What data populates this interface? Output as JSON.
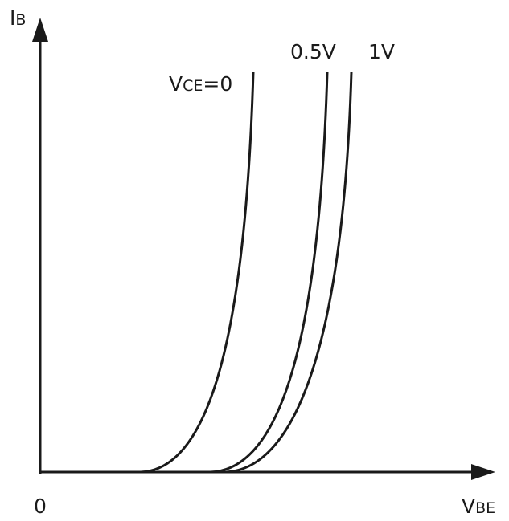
{
  "axes": {
    "y_label_main": "I",
    "y_label_sub": "B",
    "x_label_main": "V",
    "x_label_sub": "BE",
    "origin": "0"
  },
  "curves": [
    {
      "label_main": "V",
      "label_sub": "CE",
      "label_rest": "=0"
    },
    {
      "label_main": "0.5V"
    },
    {
      "label_main": "1V"
    }
  ],
  "colors": {
    "line": "#1a1a1a",
    "background": "#ffffff"
  }
}
